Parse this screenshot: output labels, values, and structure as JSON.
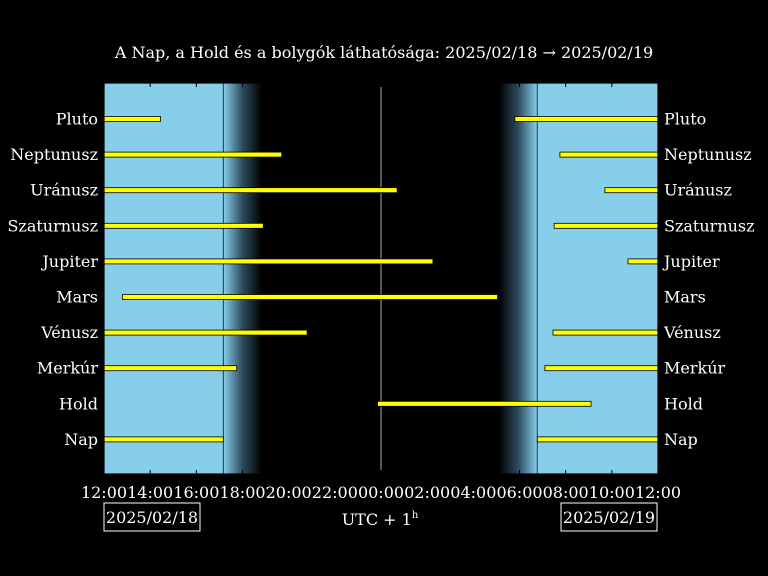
{
  "chart_data": {
    "type": "gantt",
    "title": "A Nap, a Hold és a bolygók láthatósága: 2025/02/18 → 2025/02/19",
    "xlabel": "UTC + 1",
    "xlabel_superscript": "h",
    "x_unit": "hours from 2025/02/18 12:00 (UTC+1)",
    "xlim": [
      0,
      24
    ],
    "x_tick_labels": [
      "12:00",
      "14:00",
      "16:00",
      "18:00",
      "20:00",
      "22:00",
      "00:00",
      "02:00",
      "04:00",
      "06:00",
      "08:00",
      "10:00",
      "12:00"
    ],
    "date_left": "2025/02/18",
    "date_right": "2025/02/19",
    "sunset": 17.17,
    "sunrise": 30.77,
    "twilight_evening_end": 18.85,
    "twilight_morning_start": 29.1,
    "midnight": 24,
    "colors": {
      "day": "#87CEEB",
      "night": "#000000",
      "bar": "#FFFF00",
      "bar_edge": "#000000",
      "text": "#FFFFFF"
    },
    "series": [
      {
        "name": "Pluto",
        "intervals": [
          [
            12.0,
            14.45
          ],
          [
            29.8,
            36.0
          ]
        ]
      },
      {
        "name": "Neptunusz",
        "intervals": [
          [
            12.0,
            19.7
          ],
          [
            31.75,
            36.0
          ]
        ]
      },
      {
        "name": "Uránusz",
        "intervals": [
          [
            12.0,
            24.7
          ],
          [
            33.7,
            36.0
          ]
        ]
      },
      {
        "name": "Szaturnusz",
        "intervals": [
          [
            12.0,
            18.9
          ],
          [
            31.5,
            36.0
          ]
        ]
      },
      {
        "name": "Jupiter",
        "intervals": [
          [
            12.0,
            26.25
          ],
          [
            34.7,
            36.0
          ]
        ]
      },
      {
        "name": "Mars",
        "intervals": [
          [
            12.8,
            29.05
          ]
        ]
      },
      {
        "name": "Vénusz",
        "intervals": [
          [
            12.0,
            20.8
          ],
          [
            31.45,
            36.0
          ]
        ]
      },
      {
        "name": "Merkúr",
        "intervals": [
          [
            12.0,
            17.75
          ],
          [
            31.1,
            36.0
          ]
        ]
      },
      {
        "name": "Hold",
        "intervals": [
          [
            23.85,
            33.1
          ]
        ]
      },
      {
        "name": "Nap",
        "intervals": [
          [
            12.0,
            17.17
          ],
          [
            30.77,
            36.0
          ]
        ]
      }
    ]
  }
}
